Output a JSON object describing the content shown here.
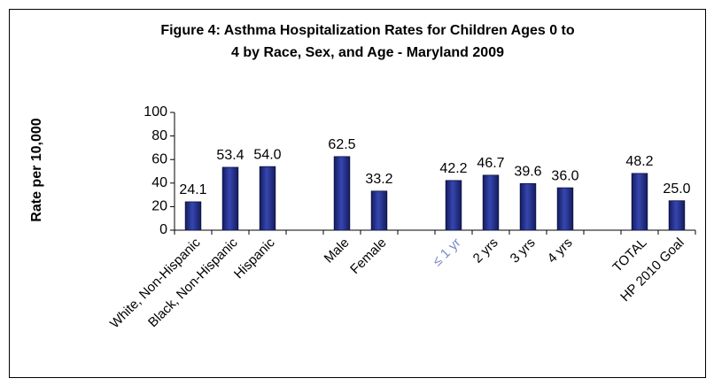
{
  "chart_data": {
    "type": "bar",
    "title": "Figure 4: Asthma Hospitalization Rates for Children Ages 0 to",
    "subtitle": "4 by Race, Sex, and Age - Maryland 2009",
    "y_label": "Rate per 10,000",
    "categories": [
      "White, Non-Hispanic",
      "Black, Non-Hispanic",
      "Hispanic",
      null,
      "Male",
      "Female",
      null,
      "≤ 1 yr",
      "2 yrs",
      "3 yrs",
      "4 yrs",
      null,
      "TOTAL",
      "HP 2010 Goal"
    ],
    "values": [
      24.1,
      53.4,
      54.0,
      null,
      62.5,
      33.2,
      null,
      42.2,
      46.7,
      39.6,
      36.0,
      null,
      48.2,
      25.0
    ],
    "value_labels": [
      "24.1",
      "53.4",
      "54.0",
      null,
      "62.5",
      "33.2",
      null,
      "42.2",
      "46.7",
      "39.6",
      "36.0",
      null,
      "48.2",
      "25.0"
    ],
    "color": "#2b3a9c",
    "ylim": [
      0,
      100
    ],
    "yticks": [
      0,
      20,
      40,
      60,
      80,
      100
    ],
    "grid": false
  }
}
